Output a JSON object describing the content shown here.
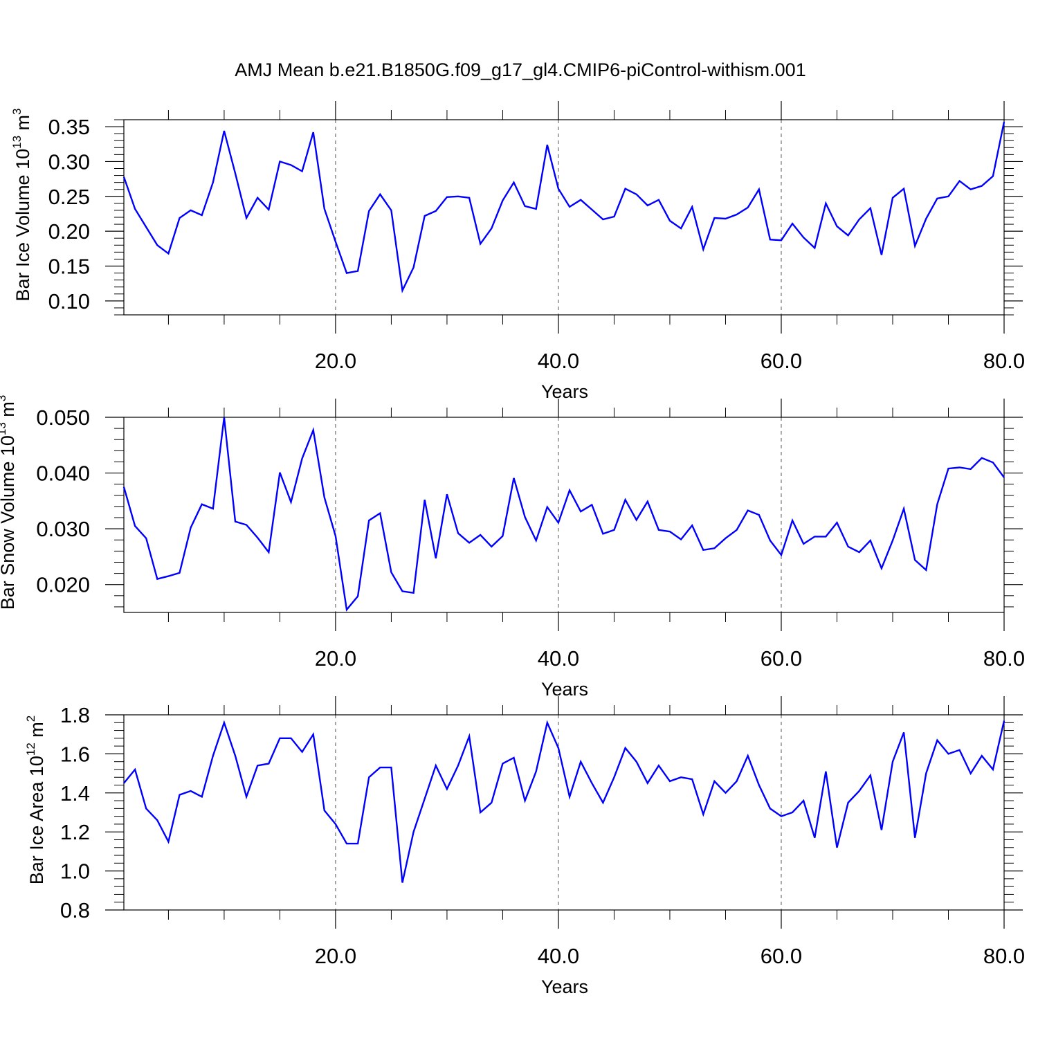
{
  "title": "AMJ Mean b.e21.B1850G.f09_g17_gl4.CMIP6-piControl-withism.001",
  "line_color": "#0000ff",
  "chart_data": [
    {
      "type": "line",
      "title": "",
      "xlabel": "Years",
      "ylabel": {
        "text": "Bar Ice Volume 10",
        "exp": "13",
        "unit": " m",
        "unit_exp": "3"
      },
      "xlim": [
        1,
        80
      ],
      "ylim": [
        0.08,
        0.36
      ],
      "xticks": [
        20,
        40,
        60,
        80
      ],
      "xtick_labels": [
        "20.0",
        "40.0",
        "60.0",
        "80.0"
      ],
      "yticks": [
        0.1,
        0.15,
        0.2,
        0.25,
        0.3,
        0.35
      ],
      "ytick_labels": [
        "0.10",
        "0.15",
        "0.20",
        "0.25",
        "0.30",
        "0.35"
      ],
      "grid": "dashed vertical at x ticks",
      "series": [
        {
          "x": [
            1,
            2,
            3,
            4,
            5,
            6,
            7,
            8,
            9,
            10,
            11,
            12,
            13,
            14,
            15,
            16,
            17,
            18,
            19,
            20,
            21,
            22,
            23,
            24,
            25,
            26,
            27,
            28,
            29,
            30,
            31,
            32,
            33,
            34,
            35,
            36,
            37,
            38,
            39,
            40,
            41,
            42,
            43,
            44,
            45,
            46,
            47,
            48,
            49,
            50,
            51,
            52,
            53,
            54,
            55,
            56,
            57,
            58,
            59,
            60,
            61,
            62,
            63,
            64,
            65,
            66,
            67,
            68,
            69,
            70,
            71,
            72,
            73,
            74,
            75,
            76,
            77,
            78,
            79,
            80
          ],
          "values": [
            0.278,
            0.232,
            0.206,
            0.18,
            0.168,
            0.219,
            0.23,
            0.223,
            0.27,
            0.344,
            0.283,
            0.219,
            0.248,
            0.231,
            0.3,
            0.295,
            0.286,
            0.342,
            0.232,
            0.185,
            0.14,
            0.143,
            0.229,
            0.253,
            0.23,
            0.115,
            0.148,
            0.222,
            0.229,
            0.249,
            0.25,
            0.248,
            0.182,
            0.204,
            0.244,
            0.27,
            0.236,
            0.232,
            0.324,
            0.261,
            0.235,
            0.245,
            0.231,
            0.217,
            0.221,
            0.261,
            0.253,
            0.237,
            0.245,
            0.215,
            0.204,
            0.235,
            0.174,
            0.219,
            0.218,
            0.224,
            0.234,
            0.26,
            0.188,
            0.187,
            0.211,
            0.191,
            0.176,
            0.24,
            0.207,
            0.194,
            0.217,
            0.233,
            0.166,
            0.248,
            0.261,
            0.179,
            0.218,
            0.247,
            0.25,
            0.272,
            0.26,
            0.265,
            0.279,
            0.357
          ]
        }
      ]
    },
    {
      "type": "line",
      "title": "",
      "xlabel": "Years",
      "ylabel": {
        "text": "Bar Snow Volume 10",
        "exp": "13",
        "unit": " m",
        "unit_exp": "3"
      },
      "xlim": [
        1,
        80
      ],
      "ylim": [
        0.015,
        0.05
      ],
      "xticks": [
        20,
        40,
        60,
        80
      ],
      "xtick_labels": [
        "20.0",
        "40.0",
        "60.0",
        "80.0"
      ],
      "yticks": [
        0.02,
        0.03,
        0.04,
        0.05
      ],
      "ytick_labels": [
        "0.020",
        "0.030",
        "0.040",
        "0.050"
      ],
      "grid": "dashed vertical at x ticks",
      "series": [
        {
          "x": [
            1,
            2,
            3,
            4,
            5,
            6,
            7,
            8,
            9,
            10,
            11,
            12,
            13,
            14,
            15,
            16,
            17,
            18,
            19,
            20,
            21,
            22,
            23,
            24,
            25,
            26,
            27,
            28,
            29,
            30,
            31,
            32,
            33,
            34,
            35,
            36,
            37,
            38,
            39,
            40,
            41,
            42,
            43,
            44,
            45,
            46,
            47,
            48,
            49,
            50,
            51,
            52,
            53,
            54,
            55,
            56,
            57,
            58,
            59,
            60,
            61,
            62,
            63,
            64,
            65,
            66,
            67,
            68,
            69,
            70,
            71,
            72,
            73,
            74,
            75,
            76,
            77,
            78,
            79,
            80
          ],
          "values": [
            0.0375,
            0.0305,
            0.0283,
            0.021,
            0.0215,
            0.0221,
            0.0302,
            0.0344,
            0.0336,
            0.05,
            0.0313,
            0.0307,
            0.0284,
            0.0258,
            0.0401,
            0.0348,
            0.0426,
            0.0477,
            0.0356,
            0.0287,
            0.0155,
            0.0179,
            0.0315,
            0.0328,
            0.0222,
            0.0188,
            0.0185,
            0.0352,
            0.0247,
            0.0362,
            0.0292,
            0.0275,
            0.0289,
            0.0268,
            0.0287,
            0.0391,
            0.0321,
            0.0279,
            0.0339,
            0.0311,
            0.0369,
            0.0331,
            0.0343,
            0.0291,
            0.0298,
            0.0352,
            0.0316,
            0.0349,
            0.0298,
            0.0295,
            0.0281,
            0.0306,
            0.0262,
            0.0265,
            0.0283,
            0.0298,
            0.0333,
            0.0325,
            0.0279,
            0.0253,
            0.0315,
            0.0273,
            0.0286,
            0.0286,
            0.0311,
            0.0268,
            0.0258,
            0.0279,
            0.0229,
            0.0279,
            0.0336,
            0.0244,
            0.0226,
            0.0344,
            0.0408,
            0.041,
            0.0407,
            0.0427,
            0.0419,
            0.0392
          ]
        }
      ]
    },
    {
      "type": "line",
      "title": "",
      "xlabel": "Years",
      "ylabel": {
        "text": "Bar Ice Area 10",
        "exp": "12",
        "unit": " m",
        "unit_exp": "2"
      },
      "xlim": [
        1,
        80
      ],
      "ylim": [
        0.8,
        1.8
      ],
      "xticks": [
        20,
        40,
        60,
        80
      ],
      "xtick_labels": [
        "20.0",
        "40.0",
        "60.0",
        "80.0"
      ],
      "yticks": [
        0.8,
        1.0,
        1.2,
        1.4,
        1.6,
        1.8
      ],
      "ytick_labels": [
        "0.8",
        "1.0",
        "1.2",
        "1.4",
        "1.6",
        "1.8"
      ],
      "grid": "dashed vertical at x ticks",
      "series": [
        {
          "x": [
            1,
            2,
            3,
            4,
            5,
            6,
            7,
            8,
            9,
            10,
            11,
            12,
            13,
            14,
            15,
            16,
            17,
            18,
            19,
            20,
            21,
            22,
            23,
            24,
            25,
            26,
            27,
            28,
            29,
            30,
            31,
            32,
            33,
            34,
            35,
            36,
            37,
            38,
            39,
            40,
            41,
            42,
            43,
            44,
            45,
            46,
            47,
            48,
            49,
            50,
            51,
            52,
            53,
            54,
            55,
            56,
            57,
            58,
            59,
            60,
            61,
            62,
            63,
            64,
            65,
            66,
            67,
            68,
            69,
            70,
            71,
            72,
            73,
            74,
            75,
            76,
            77,
            78,
            79,
            80
          ],
          "values": [
            1.45,
            1.52,
            1.32,
            1.26,
            1.15,
            1.39,
            1.41,
            1.38,
            1.59,
            1.76,
            1.59,
            1.38,
            1.54,
            1.55,
            1.68,
            1.68,
            1.61,
            1.7,
            1.31,
            1.24,
            1.14,
            1.14,
            1.48,
            1.53,
            1.53,
            0.94,
            1.2,
            1.37,
            1.54,
            1.42,
            1.54,
            1.69,
            1.3,
            1.35,
            1.55,
            1.58,
            1.36,
            1.51,
            1.76,
            1.63,
            1.38,
            1.56,
            1.45,
            1.35,
            1.48,
            1.63,
            1.56,
            1.45,
            1.54,
            1.46,
            1.48,
            1.47,
            1.29,
            1.46,
            1.4,
            1.46,
            1.59,
            1.44,
            1.32,
            1.28,
            1.3,
            1.36,
            1.17,
            1.51,
            1.12,
            1.35,
            1.41,
            1.49,
            1.21,
            1.56,
            1.71,
            1.17,
            1.5,
            1.67,
            1.6,
            1.62,
            1.5,
            1.59,
            1.52,
            1.77
          ]
        }
      ]
    }
  ]
}
